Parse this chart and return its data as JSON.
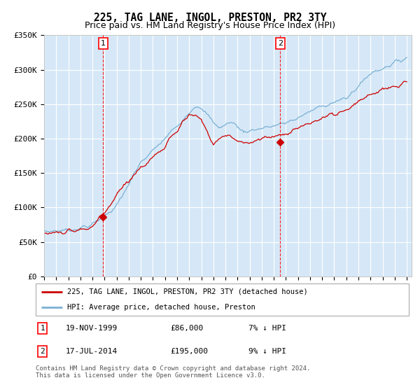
{
  "title": "225, TAG LANE, INGOL, PRESTON, PR2 3TY",
  "subtitle": "Price paid vs. HM Land Registry's House Price Index (HPI)",
  "ylim": [
    0,
    350000
  ],
  "yticks": [
    0,
    50000,
    100000,
    150000,
    200000,
    250000,
    300000,
    350000
  ],
  "ytick_labels": [
    "£0",
    "£50K",
    "£100K",
    "£150K",
    "£200K",
    "£250K",
    "£300K",
    "£350K"
  ],
  "background_color": "#d6e8f7",
  "red_line_color": "#cc0000",
  "blue_line_color": "#7ab0d4",
  "point1_date": 1999.88,
  "point1_price": 86000,
  "point1_label": "1",
  "point1_date_str": "19-NOV-1999",
  "point1_price_str": "£86,000",
  "point1_pct_str": "7% ↓ HPI",
  "point2_date": 2014.54,
  "point2_price": 195000,
  "point2_label": "2",
  "point2_date_str": "17-JUL-2014",
  "point2_price_str": "£195,000",
  "point2_pct_str": "9% ↓ HPI",
  "legend_label_red": "225, TAG LANE, INGOL, PRESTON, PR2 3TY (detached house)",
  "legend_label_blue": "HPI: Average price, detached house, Preston",
  "footer_text": "Contains HM Land Registry data © Crown copyright and database right 2024.\nThis data is licensed under the Open Government Licence v3.0.",
  "title_fontsize": 10.5,
  "subtitle_fontsize": 9,
  "tick_fontsize": 8
}
